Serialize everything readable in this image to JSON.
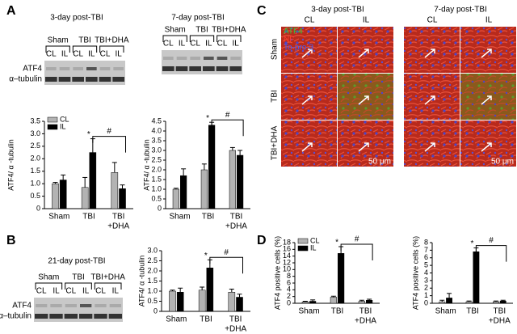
{
  "panel_labels": [
    "A",
    "B",
    "C",
    "D"
  ],
  "blots": [
    {
      "title": "3-day post-TBI",
      "groups": [
        "Sham",
        "TBI",
        "TBI+DHA"
      ],
      "lanes": [
        "CL",
        "IL",
        "CL",
        "IL",
        "CL",
        "IL"
      ],
      "rows": [
        "ATF4",
        "α–tubulin"
      ]
    },
    {
      "title": "7-day post-TBI",
      "groups": [
        "Sham",
        "TBI",
        "TBI+DHA"
      ],
      "lanes": [
        "CL",
        "IL",
        "CL",
        "IL",
        "CL",
        "IL"
      ]
    },
    {
      "title": "21-day post-TBI",
      "groups": [
        "Sham",
        "TBI",
        "TBI+DHA"
      ],
      "lanes": [
        "CL",
        "IL",
        "CL",
        "IL",
        "CL",
        "IL"
      ],
      "rows": [
        "ATF4",
        "α–tubulin"
      ]
    }
  ],
  "micrographs": {
    "titles": [
      "3-day post-TBI",
      "7-day post-TBI"
    ],
    "columns": [
      "CL",
      "IL"
    ],
    "rows": [
      "Sham",
      "TBI",
      "TBI+DHA"
    ],
    "stains": [
      "ATF4",
      "NF",
      "To-pro-3"
    ],
    "stain_colors": [
      "#2ecc40",
      "#ff3b30",
      "#3b5bff"
    ],
    "scale_bar": "50 μm"
  },
  "chart_data": [
    {
      "type": "bar",
      "ylabel": "ATF4/ α -tubulin",
      "categories": [
        [
          "Sham"
        ],
        [
          "TBI"
        ],
        [
          "TBI",
          "+DHA"
        ]
      ],
      "series": [
        {
          "name": "CL",
          "color": "#b3b3b3",
          "values": [
            1.0,
            0.85,
            1.45
          ],
          "errors": [
            0.05,
            0.4,
            0.4
          ]
        },
        {
          "name": "IL",
          "color": "#000000",
          "values": [
            1.15,
            2.25,
            0.8
          ],
          "errors": [
            0.2,
            0.55,
            0.15
          ]
        }
      ],
      "ylim": [
        0,
        3.5
      ],
      "yticks": [
        0,
        0.5,
        {
          "value": 1,
          "label": "1.0"
        },
        1.5,
        {
          "value": 2,
          "label": "2.0"
        },
        2.5,
        {
          "value": 3,
          "label": "3.0"
        },
        3.5
      ],
      "legend": "upper left",
      "annotations": [
        "*",
        "#"
      ]
    },
    {
      "type": "bar",
      "ylabel": "ATF4/ α -tubulin",
      "categories": [
        [
          "Sham"
        ],
        [
          "TBI"
        ],
        [
          "TBI",
          "+DHA"
        ]
      ],
      "series": [
        {
          "name": "CL",
          "color": "#b3b3b3",
          "values": [
            1.0,
            2.0,
            3.0
          ],
          "errors": [
            0.05,
            0.3,
            0.15
          ]
        },
        {
          "name": "IL",
          "color": "#000000",
          "values": [
            1.7,
            4.3,
            2.75
          ],
          "errors": [
            0.35,
            0.15,
            0.25
          ]
        }
      ],
      "ylim": [
        0,
        4.5
      ],
      "yticks": [
        0,
        0.5,
        {
          "value": 1,
          "label": "1.0"
        },
        1.5,
        {
          "value": 2,
          "label": "2.0"
        },
        2.5,
        {
          "value": 3,
          "label": "3.0"
        },
        3.5,
        {
          "value": 4,
          "label": "4.0"
        },
        4.5
      ],
      "annotations": [
        "*",
        "#"
      ]
    },
    {
      "type": "bar",
      "ylabel": "ATF4/ α -tubulin",
      "categories": [
        [
          "Sham"
        ],
        [
          "TBI"
        ],
        [
          "TBI",
          "+DHA"
        ]
      ],
      "series": [
        {
          "name": "CL",
          "color": "#b3b3b3",
          "values": [
            1.0,
            1.05,
            0.95
          ],
          "errors": [
            0.05,
            0.15,
            0.15
          ]
        },
        {
          "name": "IL",
          "color": "#000000",
          "values": [
            0.95,
            2.15,
            0.7
          ],
          "errors": [
            0.2,
            0.4,
            0.15
          ]
        }
      ],
      "ylim": [
        0,
        3
      ],
      "yticks": [
        0,
        0.5,
        {
          "value": 1,
          "label": "1.0"
        },
        1.5,
        {
          "value": 2,
          "label": "2.0"
        },
        2.5,
        {
          "value": 3,
          "label": "3.0"
        }
      ],
      "annotations": [
        "*",
        "#"
      ]
    },
    {
      "type": "bar",
      "ylabel": "ATF4 positive cells (%)",
      "categories": [
        [
          "Sham"
        ],
        [
          "TBI"
        ],
        [
          "TBI",
          "+DHA"
        ]
      ],
      "series": [
        {
          "name": "CL",
          "color": "#b3b3b3",
          "values": [
            0.4,
            1.8,
            0.6
          ],
          "errors": [
            0.2,
            0.3,
            0.3
          ]
        },
        {
          "name": "IL",
          "color": "#000000",
          "values": [
            0.6,
            14.8,
            0.9
          ],
          "errors": [
            0.4,
            2,
            0.3
          ]
        }
      ],
      "ylim": [
        0,
        18
      ],
      "yticks": [
        0,
        2,
        4,
        6,
        8,
        10,
        12,
        14,
        16,
        18
      ],
      "legend": "upper left",
      "annotations": [
        "*",
        "#"
      ]
    },
    {
      "type": "bar",
      "ylabel": "ATF4 positive cells (%)",
      "categories": [
        [
          "Sham"
        ],
        [
          "TBI"
        ],
        [
          "TBI",
          "+DHA"
        ]
      ],
      "series": [
        {
          "name": "CL",
          "color": "#b3b3b3",
          "values": [
            0.2,
            0.2,
            0.2
          ],
          "errors": [
            0.2,
            0.1,
            0.1
          ]
        },
        {
          "name": "IL",
          "color": "#000000",
          "values": [
            0.7,
            6.8,
            0.3
          ],
          "errors": [
            0.6,
            0.5,
            0.1
          ]
        }
      ],
      "ylim": [
        0,
        8
      ],
      "yticks": [
        0,
        1,
        2,
        3,
        4,
        5,
        6,
        7,
        8
      ],
      "annotations": [
        "*",
        "#"
      ]
    }
  ]
}
